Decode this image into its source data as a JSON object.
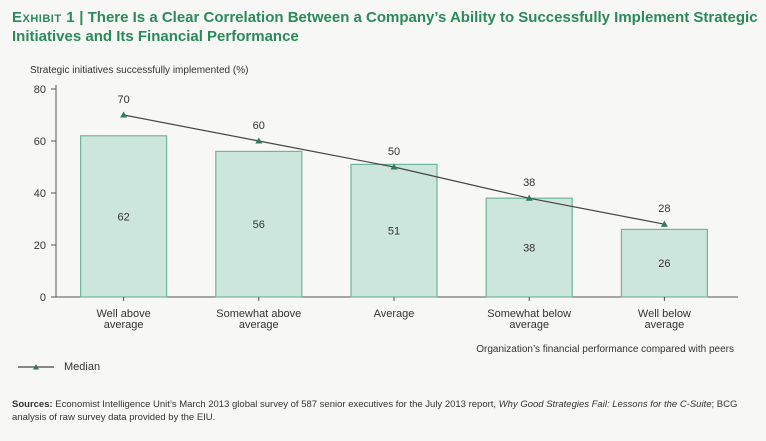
{
  "title": {
    "exhibit": "Exhibit 1",
    "separator": " | ",
    "text": "There Is a Clear Correlation Between a Company’s Ability to Successfully Implement Strategic Initiatives and Its Financial Performance"
  },
  "legend": {
    "median_label": "Median"
  },
  "sources": {
    "label": "Sources:",
    "text_1": " Economist Intelligence Unit’s March 2013 global survey of 587 senior executives for the July 2013 report, ",
    "report_title": "Why Good Strategies Fail: Lessons for the C-Suite",
    "text_2": "; BCG analysis of raw survey data provided by the EIU."
  },
  "colors": {
    "title": "#2a8a5a",
    "bar_fill": "#cde6dd",
    "bar_stroke": "#6fb59b",
    "line": "#444444",
    "marker": "#2e7a5a"
  },
  "chart_data": {
    "type": "bar",
    "ylabel": "Strategic initiatives successfully implemented (%)",
    "xlabel": "Organization’s financial performance compared with peers",
    "ylim": [
      0,
      80
    ],
    "yticks": [
      0,
      20,
      40,
      60,
      80
    ],
    "categories": [
      [
        "Well above",
        "average"
      ],
      [
        "Somewhat above",
        "average"
      ],
      [
        "Average"
      ],
      [
        "Somewhat below",
        "average"
      ],
      [
        "Well below",
        "average"
      ]
    ],
    "series": [
      {
        "type": "bar",
        "values": [
          62,
          56,
          51,
          38,
          26
        ]
      },
      {
        "type": "line",
        "name": "Median",
        "values": [
          70,
          60,
          50,
          38,
          28
        ]
      }
    ],
    "grid": false,
    "legend": "bottom-left"
  }
}
